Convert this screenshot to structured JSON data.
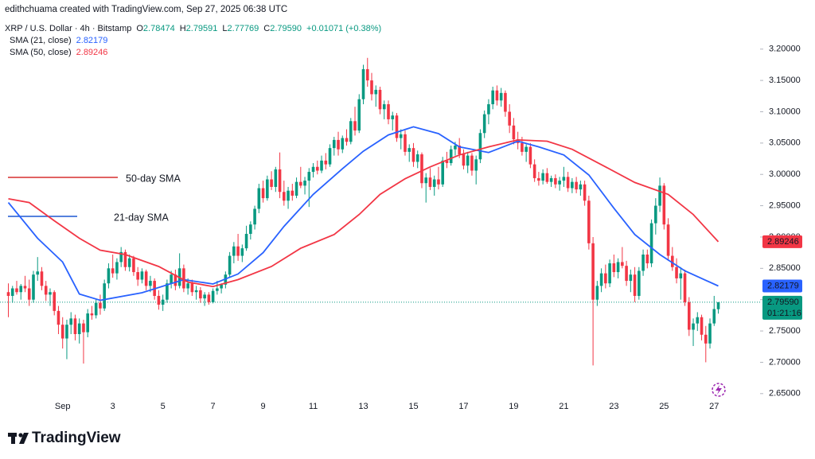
{
  "header": {
    "credit": "edithchuama created with TradingView.com, Sep 27, 2025 06:38 UTC",
    "symbol": "XRP / U.S. Dollar · 4h · Bitstamp",
    "ohlc": [
      {
        "label": "O",
        "value": "2.78474"
      },
      {
        "label": "H",
        "value": "2.79591"
      },
      {
        "label": "L",
        "value": "2.77769"
      },
      {
        "label": "C",
        "value": "2.79590"
      }
    ],
    "change": "+0.01071 (+0.38%)"
  },
  "chart_data": {
    "type": "candlestick",
    "up_color": "#089981",
    "down_color": "#f23645",
    "xlim": [
      -2,
      180
    ],
    "ylim": [
      2.618,
      3.253
    ],
    "xticks": [
      {
        "value": 13,
        "label": "Sep"
      },
      {
        "value": 25,
        "label": "3"
      },
      {
        "value": 37,
        "label": "5"
      },
      {
        "value": 49,
        "label": "7"
      },
      {
        "value": 61,
        "label": "9"
      },
      {
        "value": 73,
        "label": "11"
      },
      {
        "value": 85,
        "label": "13"
      },
      {
        "value": 97,
        "label": "15"
      },
      {
        "value": 109,
        "label": "17"
      },
      {
        "value": 121,
        "label": "19"
      },
      {
        "value": 133,
        "label": "21"
      },
      {
        "value": 145,
        "label": "23"
      },
      {
        "value": 157,
        "label": "25"
      },
      {
        "value": 169,
        "label": "27"
      }
    ],
    "yticks": [
      {
        "value": 3.2,
        "label": "3.20000"
      },
      {
        "value": 3.15,
        "label": "3.15000"
      },
      {
        "value": 3.1,
        "label": "3.10000"
      },
      {
        "value": 3.05,
        "label": "3.05000"
      },
      {
        "value": 3.0,
        "label": "3.00000"
      },
      {
        "value": 2.95,
        "label": "2.95000"
      },
      {
        "value": 2.9,
        "label": "2.90000"
      },
      {
        "value": 2.85,
        "label": "2.85000"
      },
      {
        "value": 2.8,
        "label": "2.80000"
      },
      {
        "value": 2.75,
        "label": "2.75000"
      },
      {
        "value": 2.7,
        "label": "2.70000"
      },
      {
        "value": 2.65,
        "label": "2.65000"
      }
    ],
    "ohlc": [
      [
        2.812,
        2.826,
        2.772,
        2.806
      ],
      [
        2.806,
        2.822,
        2.795,
        2.818
      ],
      [
        2.818,
        2.83,
        2.808,
        2.812
      ],
      [
        2.812,
        2.825,
        2.8,
        2.822
      ],
      [
        2.822,
        2.838,
        2.812,
        2.818
      ],
      [
        2.818,
        2.832,
        2.79,
        2.8
      ],
      [
        2.8,
        2.846,
        2.795,
        2.84
      ],
      [
        2.84,
        2.868,
        2.83,
        2.845
      ],
      [
        2.845,
        2.852,
        2.815,
        2.822
      ],
      [
        2.822,
        2.83,
        2.798,
        2.808
      ],
      [
        2.808,
        2.818,
        2.79,
        2.812
      ],
      [
        2.812,
        2.815,
        2.775,
        2.782
      ],
      [
        2.782,
        2.79,
        2.745,
        2.76
      ],
      [
        2.76,
        2.772,
        2.722,
        2.738
      ],
      [
        2.738,
        2.768,
        2.705,
        2.76
      ],
      [
        2.76,
        2.78,
        2.745,
        2.77
      ],
      [
        2.77,
        2.776,
        2.735,
        2.745
      ],
      [
        2.745,
        2.77,
        2.73,
        2.762
      ],
      [
        2.762,
        2.768,
        2.698,
        2.748
      ],
      [
        2.748,
        2.785,
        2.74,
        2.778
      ],
      [
        2.778,
        2.79,
        2.768,
        2.775
      ],
      [
        2.775,
        2.8,
        2.77,
        2.795
      ],
      [
        2.795,
        2.808,
        2.776,
        2.786
      ],
      [
        2.786,
        2.832,
        2.782,
        2.826
      ],
      [
        2.826,
        2.858,
        2.818,
        2.85
      ],
      [
        2.85,
        2.872,
        2.835,
        2.842
      ],
      [
        2.842,
        2.866,
        2.832,
        2.86
      ],
      [
        2.86,
        2.884,
        2.852,
        2.876
      ],
      [
        2.876,
        2.88,
        2.846,
        2.852
      ],
      [
        2.852,
        2.872,
        2.845,
        2.866
      ],
      [
        2.866,
        2.87,
        2.838,
        2.844
      ],
      [
        2.844,
        2.852,
        2.822,
        2.832
      ],
      [
        2.832,
        2.85,
        2.826,
        2.845
      ],
      [
        2.845,
        2.848,
        2.815,
        2.822
      ],
      [
        2.822,
        2.838,
        2.812,
        2.83
      ],
      [
        2.83,
        2.834,
        2.8,
        2.806
      ],
      [
        2.806,
        2.815,
        2.784,
        2.792
      ],
      [
        2.792,
        2.808,
        2.782,
        2.8
      ],
      [
        2.8,
        2.832,
        2.795,
        2.826
      ],
      [
        2.826,
        2.846,
        2.818,
        2.84
      ],
      [
        2.84,
        2.848,
        2.815,
        2.822
      ],
      [
        2.822,
        2.874,
        2.818,
        2.85
      ],
      [
        2.85,
        2.856,
        2.812,
        2.818
      ],
      [
        2.818,
        2.834,
        2.808,
        2.826
      ],
      [
        2.826,
        2.832,
        2.806,
        2.812
      ],
      [
        2.812,
        2.822,
        2.8,
        2.815
      ],
      [
        2.815,
        2.82,
        2.795,
        2.802
      ],
      [
        2.802,
        2.812,
        2.79,
        2.808
      ],
      [
        2.808,
        2.812,
        2.792,
        2.796
      ],
      [
        2.796,
        2.818,
        2.794,
        2.814
      ],
      [
        2.814,
        2.83,
        2.808,
        2.818
      ],
      [
        2.818,
        2.826,
        2.81,
        2.824
      ],
      [
        2.824,
        2.845,
        2.818,
        2.84
      ],
      [
        2.84,
        2.876,
        2.836,
        2.87
      ],
      [
        2.87,
        2.892,
        2.858,
        2.885
      ],
      [
        2.885,
        2.905,
        2.862,
        2.87
      ],
      [
        2.87,
        2.888,
        2.86,
        2.882
      ],
      [
        2.882,
        2.918,
        2.878,
        2.905
      ],
      [
        2.905,
        2.925,
        2.896,
        2.92
      ],
      [
        2.92,
        2.95,
        2.912,
        2.945
      ],
      [
        2.945,
        2.985,
        2.938,
        2.978
      ],
      [
        2.978,
        2.99,
        2.955,
        2.962
      ],
      [
        2.962,
        2.998,
        2.958,
        2.992
      ],
      [
        2.992,
        3.005,
        2.975,
        2.98
      ],
      [
        2.98,
        3.012,
        2.972,
        3.008
      ],
      [
        3.008,
        3.035,
        2.962,
        2.972
      ],
      [
        2.972,
        2.99,
        2.95,
        2.958
      ],
      [
        2.958,
        2.98,
        2.945,
        2.974
      ],
      [
        2.974,
        2.985,
        2.958,
        2.966
      ],
      [
        2.966,
        2.995,
        2.962,
        2.988
      ],
      [
        2.988,
        3.012,
        2.978,
        2.982
      ],
      [
        2.982,
        2.996,
        2.968,
        2.99
      ],
      [
        2.99,
        3.01,
        2.948,
        3.004
      ],
      [
        3.004,
        3.018,
        2.995,
        3.012
      ],
      [
        3.012,
        3.022,
        3.0,
        3.006
      ],
      [
        3.006,
        3.03,
        3.002,
        3.022
      ],
      [
        3.022,
        3.034,
        3.008,
        3.016
      ],
      [
        3.016,
        3.048,
        3.012,
        3.042
      ],
      [
        3.042,
        3.06,
        3.03,
        3.055
      ],
      [
        3.055,
        3.068,
        3.03,
        3.04
      ],
      [
        3.04,
        3.062,
        3.034,
        3.058
      ],
      [
        3.058,
        3.072,
        3.046,
        3.052
      ],
      [
        3.052,
        3.09,
        3.048,
        3.085
      ],
      [
        3.085,
        3.108,
        3.062,
        3.07
      ],
      [
        3.07,
        3.128,
        3.066,
        3.12
      ],
      [
        3.12,
        3.175,
        3.112,
        3.168
      ],
      [
        3.168,
        3.186,
        3.14,
        3.15
      ],
      [
        3.15,
        3.162,
        3.118,
        3.128
      ],
      [
        3.128,
        3.142,
        3.108,
        3.135
      ],
      [
        3.135,
        3.14,
        3.096,
        3.104
      ],
      [
        3.104,
        3.118,
        3.088,
        3.112
      ],
      [
        3.112,
        3.118,
        3.08,
        3.088
      ],
      [
        3.088,
        3.1,
        3.07,
        3.094
      ],
      [
        3.094,
        3.098,
        3.052,
        3.058
      ],
      [
        3.058,
        3.072,
        3.04,
        3.064
      ],
      [
        3.064,
        3.07,
        3.03,
        3.036
      ],
      [
        3.036,
        3.048,
        3.02,
        3.042
      ],
      [
        3.042,
        3.05,
        3.012,
        3.02
      ],
      [
        3.02,
        3.038,
        3.01,
        3.032
      ],
      [
        3.032,
        3.035,
        2.978,
        2.986
      ],
      [
        2.986,
        3.002,
        2.955,
        2.995
      ],
      [
        2.995,
        3.01,
        2.975,
        2.98
      ],
      [
        2.98,
        2.998,
        2.966,
        2.992
      ],
      [
        2.992,
        3.012,
        2.976,
        2.984
      ],
      [
        2.984,
        3.028,
        2.98,
        3.022
      ],
      [
        3.022,
        3.036,
        3.01,
        3.018
      ],
      [
        3.018,
        3.046,
        3.014,
        3.04
      ],
      [
        3.04,
        3.052,
        3.03,
        3.046
      ],
      [
        3.046,
        3.058,
        3.026,
        3.032
      ],
      [
        3.032,
        3.04,
        3.008,
        3.014
      ],
      [
        3.014,
        3.036,
        3.002,
        3.03
      ],
      [
        3.03,
        3.034,
        2.998,
        3.006
      ],
      [
        3.006,
        3.03,
        2.984,
        3.024
      ],
      [
        3.024,
        3.072,
        3.018,
        3.066
      ],
      [
        3.066,
        3.102,
        3.058,
        3.096
      ],
      [
        3.096,
        3.12,
        3.08,
        3.112
      ],
      [
        3.112,
        3.14,
        3.104,
        3.134
      ],
      [
        3.134,
        3.142,
        3.11,
        3.118
      ],
      [
        3.118,
        3.138,
        3.108,
        3.13
      ],
      [
        3.13,
        3.134,
        3.092,
        3.1
      ],
      [
        3.1,
        3.112,
        3.066,
        3.078
      ],
      [
        3.078,
        3.09,
        3.048,
        3.056
      ],
      [
        3.056,
        3.068,
        3.04,
        3.05
      ],
      [
        3.05,
        3.06,
        3.03,
        3.036
      ],
      [
        3.036,
        3.048,
        3.02,
        3.044
      ],
      [
        3.044,
        3.05,
        3.01,
        3.016
      ],
      [
        3.016,
        3.024,
        2.988,
        2.994
      ],
      [
        2.994,
        3.004,
        2.982,
        2.99
      ],
      [
        2.99,
        3.008,
        2.984,
        3.002
      ],
      [
        3.002,
        3.01,
        2.985,
        2.988
      ],
      [
        2.988,
        2.998,
        2.98,
        2.994
      ],
      [
        2.994,
        3.0,
        2.978,
        2.984
      ],
      [
        2.984,
        2.996,
        2.974,
        2.99
      ],
      [
        2.99,
        3.012,
        2.98,
        2.996
      ],
      [
        2.996,
        3.004,
        2.972,
        2.978
      ],
      [
        2.978,
        2.994,
        2.97,
        2.988
      ],
      [
        2.988,
        2.996,
        2.97,
        2.976
      ],
      [
        2.976,
        2.99,
        2.966,
        2.984
      ],
      [
        2.984,
        2.99,
        2.95,
        2.958
      ],
      [
        2.958,
        2.966,
        2.88,
        2.89
      ],
      [
        2.89,
        2.9,
        2.695,
        2.8
      ],
      [
        2.8,
        2.83,
        2.79,
        2.822
      ],
      [
        2.822,
        2.85,
        2.812,
        2.842
      ],
      [
        2.842,
        2.856,
        2.818,
        2.826
      ],
      [
        2.826,
        2.864,
        2.82,
        2.858
      ],
      [
        2.858,
        2.872,
        2.836,
        2.844
      ],
      [
        2.844,
        2.866,
        2.834,
        2.86
      ],
      [
        2.86,
        2.884,
        2.85,
        2.854
      ],
      [
        2.854,
        2.862,
        2.822,
        2.83
      ],
      [
        2.83,
        2.848,
        2.812,
        2.84
      ],
      [
        2.84,
        2.852,
        2.796,
        2.806
      ],
      [
        2.806,
        2.852,
        2.8,
        2.846
      ],
      [
        2.846,
        2.88,
        2.838,
        2.872
      ],
      [
        2.872,
        2.88,
        2.85,
        2.858
      ],
      [
        2.858,
        2.928,
        2.852,
        2.922
      ],
      [
        2.922,
        2.962,
        2.904,
        2.95
      ],
      [
        2.95,
        2.995,
        2.94,
        2.982
      ],
      [
        2.982,
        2.986,
        2.912,
        2.92
      ],
      [
        2.92,
        2.93,
        2.862,
        2.87
      ],
      [
        2.87,
        2.884,
        2.846,
        2.852
      ],
      [
        2.852,
        2.866,
        2.826,
        2.834
      ],
      [
        2.834,
        2.852,
        2.8,
        2.842
      ],
      [
        2.842,
        2.848,
        2.79,
        2.796
      ],
      [
        2.796,
        2.804,
        2.742,
        2.752
      ],
      [
        2.752,
        2.77,
        2.726,
        2.762
      ],
      [
        2.762,
        2.78,
        2.75,
        2.772
      ],
      [
        2.772,
        2.776,
        2.735,
        2.744
      ],
      [
        2.744,
        2.758,
        2.7,
        2.73
      ],
      [
        2.73,
        2.77,
        2.722,
        2.762
      ],
      [
        2.762,
        2.806,
        2.758,
        2.785
      ],
      [
        2.78474,
        2.79591,
        2.77769,
        2.7959
      ]
    ],
    "series": [
      {
        "name": "SMA (21, close)",
        "color": "#2962ff",
        "label": "2.82179",
        "x": [
          0,
          7,
          13,
          17,
          22,
          32,
          42,
          49,
          55,
          61,
          66,
          73,
          80,
          85,
          91,
          97,
          103,
          108,
          115,
          122,
          127,
          133,
          139,
          145,
          150,
          156,
          162,
          170
        ],
        "values": [
          2.955,
          2.898,
          2.86,
          2.809,
          2.799,
          2.811,
          2.832,
          2.825,
          2.841,
          2.875,
          2.917,
          2.968,
          3.009,
          3.037,
          3.063,
          3.076,
          3.065,
          3.044,
          3.035,
          3.053,
          3.044,
          3.031,
          2.999,
          2.946,
          2.904,
          2.872,
          2.846,
          2.82179
        ]
      },
      {
        "name": "SMA (50, close)",
        "color": "#f23645",
        "label": "2.89246",
        "x": [
          0,
          5,
          11,
          17,
          22,
          28,
          36,
          43,
          49,
          55,
          63,
          70,
          78,
          84,
          89,
          95,
          101,
          108,
          115,
          122,
          129,
          135,
          143,
          150,
          158,
          164,
          170
        ],
        "values": [
          2.961,
          2.955,
          2.926,
          2.898,
          2.879,
          2.872,
          2.853,
          2.828,
          2.821,
          2.832,
          2.853,
          2.882,
          2.904,
          2.936,
          2.968,
          2.993,
          3.012,
          3.031,
          3.044,
          3.055,
          3.053,
          3.04,
          3.012,
          2.987,
          2.968,
          2.936,
          2.89246
        ]
      }
    ],
    "last_price": {
      "value": 2.7959,
      "label": "2.79590",
      "countdown": "01:21:16"
    },
    "annotations": [
      {
        "text": "50-day SMA",
        "color": "#dd4b4b"
      },
      {
        "text": "21-day SMA",
        "color": "#3d6fd8"
      }
    ]
  },
  "footer": {
    "brand": "TradingView"
  }
}
